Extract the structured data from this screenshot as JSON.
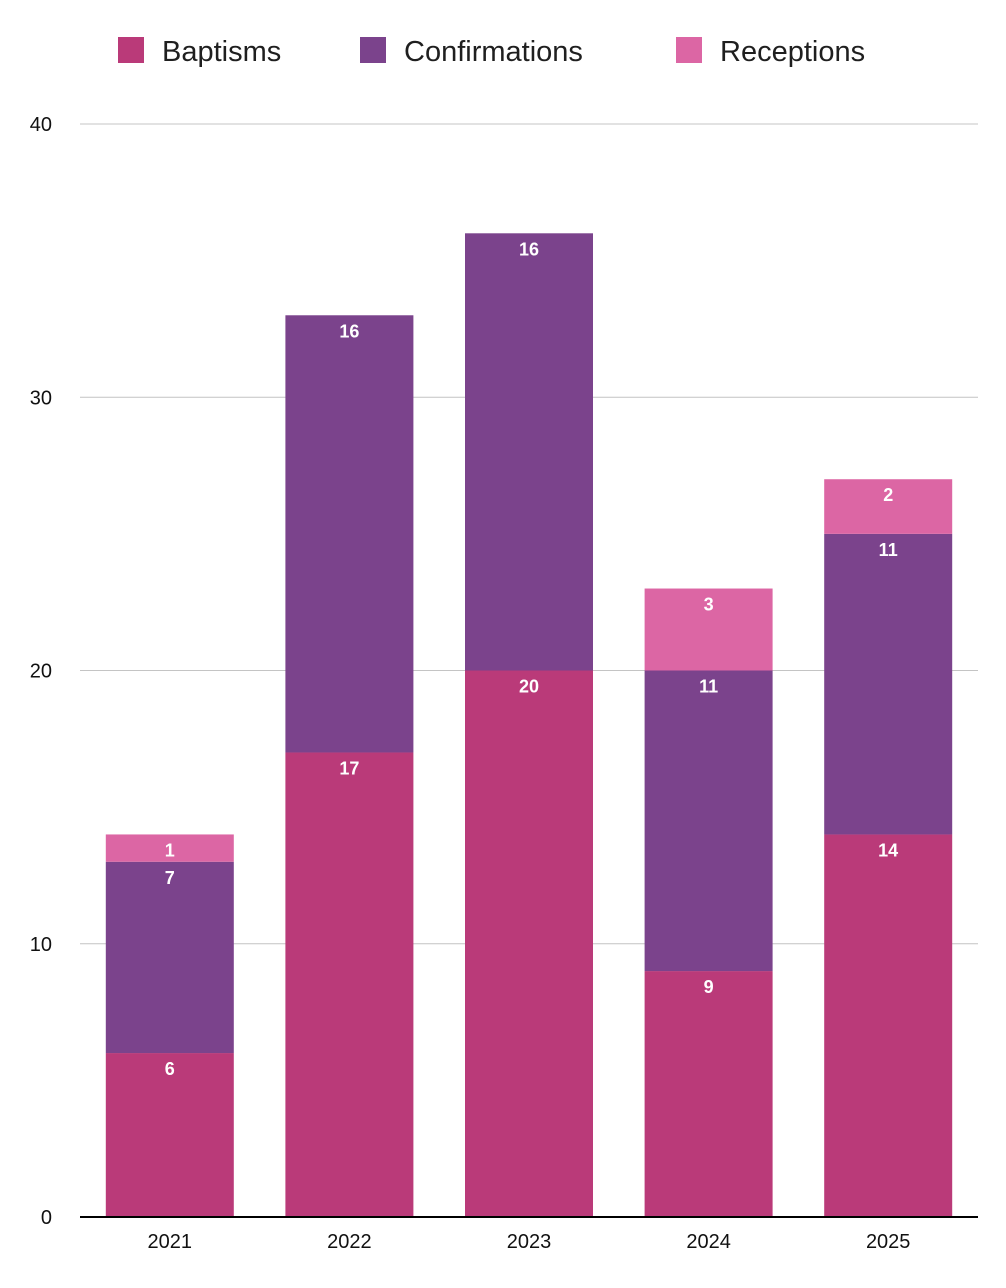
{
  "chart_data": {
    "type": "bar",
    "stacked": true,
    "title": "",
    "xlabel": "",
    "ylabel": "",
    "categories": [
      "2021",
      "2022",
      "2023",
      "2024",
      "2025"
    ],
    "series": [
      {
        "name": "Baptisms",
        "color": "#BA3A79",
        "values": [
          6,
          17,
          20,
          9,
          14
        ]
      },
      {
        "name": "Confirmations",
        "color": "#7B438C",
        "values": [
          7,
          16,
          16,
          11,
          11
        ]
      },
      {
        "name": "Receptions",
        "color": "#DC66A4",
        "values": [
          1,
          0,
          0,
          3,
          2
        ]
      }
    ],
    "ylim": [
      0,
      40
    ],
    "yticks": [
      0,
      10,
      20,
      30,
      40
    ],
    "grid": true,
    "legend_position": "top",
    "data_labels": true
  }
}
